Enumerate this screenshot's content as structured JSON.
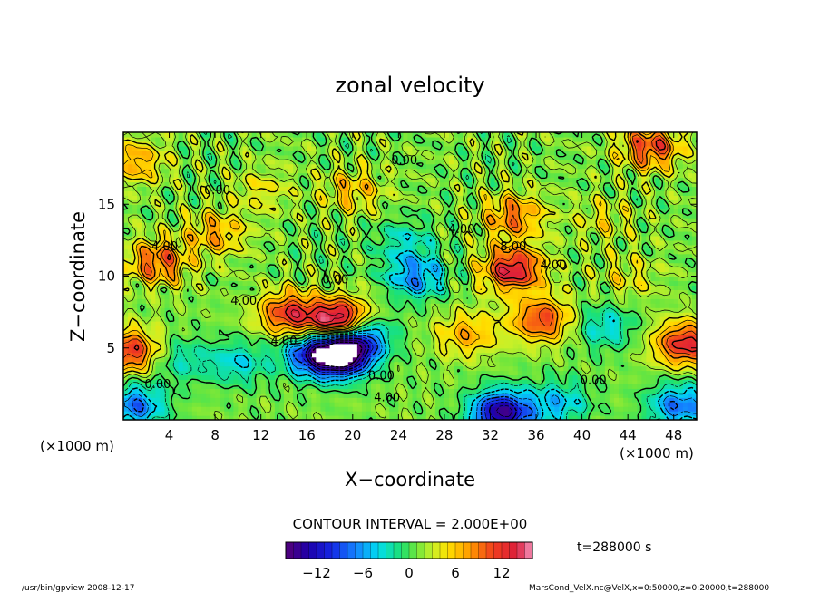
{
  "chart_data": {
    "type": "heatmap",
    "title": "zonal velocity",
    "xlabel": "X−coordinate",
    "ylabel": "Z−coordinate",
    "x_units_left": "(×1000 m)",
    "x_units_right": "(×1000 m)",
    "xlim": [
      0,
      50
    ],
    "ylim": [
      0,
      20
    ],
    "xticks": [
      4,
      8,
      12,
      16,
      20,
      24,
      28,
      32,
      36,
      40,
      44,
      48
    ],
    "yticks": [
      5,
      10,
      15
    ],
    "contour_interval_label": "CONTOUR INTERVAL = 2.000E+00",
    "time_label": "t=288000 s",
    "colorbar": {
      "range": [
        -16,
        16
      ],
      "ticks": [
        -12,
        -6,
        0,
        6,
        12
      ],
      "tick_labels": [
        "−12",
        "−6",
        "0",
        "6",
        "12"
      ]
    },
    "contour_labels": [
      {
        "text": "0.00",
        "x": 24.5,
        "y": 17.8
      },
      {
        "text": "0.00",
        "x": 8.2,
        "y": 15.7
      },
      {
        "text": "4.00",
        "x": 29.5,
        "y": 13.0
      },
      {
        "text": "4.00",
        "x": 3.6,
        "y": 11.8
      },
      {
        "text": "8.00",
        "x": 34.0,
        "y": 11.8
      },
      {
        "text": "4.00",
        "x": 37.5,
        "y": 10.5
      },
      {
        "text": "0.00",
        "x": 18.5,
        "y": 9.5
      },
      {
        "text": "4.00",
        "x": 10.5,
        "y": 8.0
      },
      {
        "text": "4.00",
        "x": 14.0,
        "y": 5.2
      },
      {
        "text": "0.00",
        "x": 3.0,
        "y": 2.2
      },
      {
        "text": "0.00",
        "x": 22.5,
        "y": 2.8
      },
      {
        "text": "4.00",
        "x": 23.0,
        "y": 1.3
      },
      {
        "text": "0.00",
        "x": 41.0,
        "y": 2.5
      }
    ],
    "field_features": [
      {
        "x": 19.0,
        "z": 6.8,
        "value": 20
      },
      {
        "x": 14.5,
        "z": 7.4,
        "value": 11
      },
      {
        "x": 19.0,
        "z": 4.6,
        "value": -20
      },
      {
        "x": 16.5,
        "z": 4.6,
        "value": -10
      },
      {
        "x": 20.5,
        "z": 6.0,
        "value": -12
      },
      {
        "x": 25.5,
        "z": 10.0,
        "value": -8
      },
      {
        "x": 24.5,
        "z": 12.5,
        "value": -4
      },
      {
        "x": 34.0,
        "z": 10.5,
        "value": 13
      },
      {
        "x": 34.0,
        "z": 14.2,
        "value": 8
      },
      {
        "x": 36.5,
        "z": 7.0,
        "value": 10
      },
      {
        "x": 33.0,
        "z": 0.5,
        "value": -16
      },
      {
        "x": 38.0,
        "z": 1.2,
        "value": -6
      },
      {
        "x": 48.5,
        "z": 1.0,
        "value": -9
      },
      {
        "x": 1.0,
        "z": 1.0,
        "value": -9
      },
      {
        "x": 49.0,
        "z": 5.3,
        "value": 12
      },
      {
        "x": 0.5,
        "z": 4.8,
        "value": 11
      },
      {
        "x": 5.0,
        "z": 4.2,
        "value": -4
      },
      {
        "x": 10.0,
        "z": 4.0,
        "value": -5
      },
      {
        "x": 42.0,
        "z": 6.5,
        "value": -5
      },
      {
        "x": 46.0,
        "z": 19.0,
        "value": 10
      },
      {
        "x": 1.0,
        "z": 18.0,
        "value": 6
      },
      {
        "x": 3.0,
        "z": 11.0,
        "value": 9
      },
      {
        "x": 8.0,
        "z": 13.0,
        "value": 6
      },
      {
        "x": 20.0,
        "z": 16.0,
        "value": 5
      },
      {
        "x": 42.0,
        "z": 14.0,
        "value": 3
      },
      {
        "x": 12.0,
        "z": 16.0,
        "value": 3
      },
      {
        "x": 30.0,
        "z": 6.0,
        "value": 6
      },
      {
        "x": 44.0,
        "z": 10.0,
        "value": 3
      }
    ],
    "grid": false,
    "legend": "colorbar bottom-center"
  },
  "footer": {
    "left": "/usr/bin/gpview   2008-12-17",
    "right": "MarsCond_VelX.nc@VelX,x=0:50000,z=0:20000,t=288000"
  }
}
